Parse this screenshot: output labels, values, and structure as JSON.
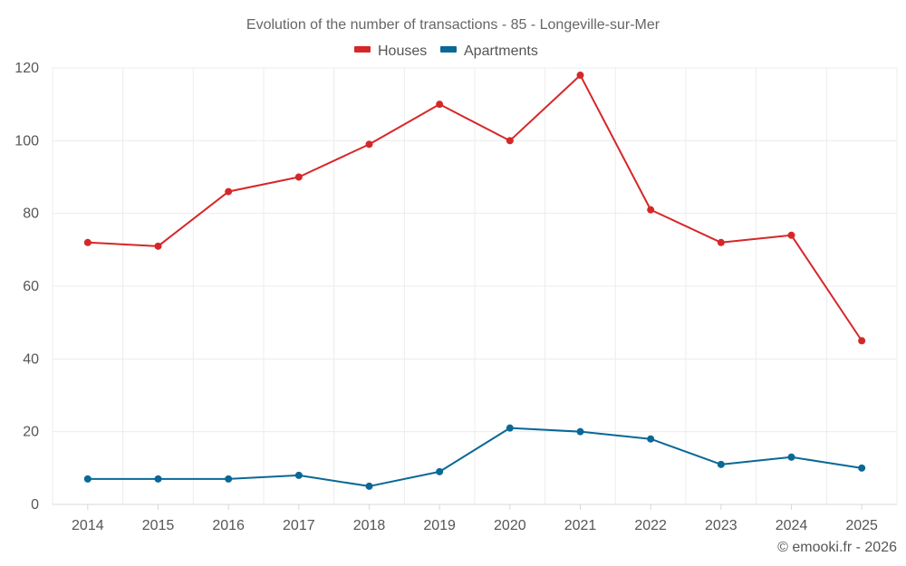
{
  "chart_data": {
    "type": "line",
    "title": "Evolution of the number of transactions - 85 - Longeville-sur-Mer",
    "categories": [
      "2014",
      "2015",
      "2016",
      "2017",
      "2018",
      "2019",
      "2020",
      "2021",
      "2022",
      "2023",
      "2024",
      "2025"
    ],
    "series": [
      {
        "name": "Houses",
        "color": "#d62728",
        "values": [
          72,
          71,
          86,
          90,
          99,
          110,
          100,
          118,
          81,
          72,
          74,
          45
        ]
      },
      {
        "name": "Apartments",
        "color": "#0a6896",
        "values": [
          7,
          7,
          7,
          8,
          5,
          9,
          21,
          20,
          18,
          11,
          13,
          10
        ]
      }
    ],
    "ylim": [
      0,
      120
    ],
    "yticks": [
      "0",
      "20",
      "40",
      "60",
      "80",
      "100",
      "120"
    ],
    "xlabel": "",
    "ylabel": "",
    "grid": true,
    "legend_position": "top-center"
  },
  "credit": "© emooki.fr - 2026"
}
